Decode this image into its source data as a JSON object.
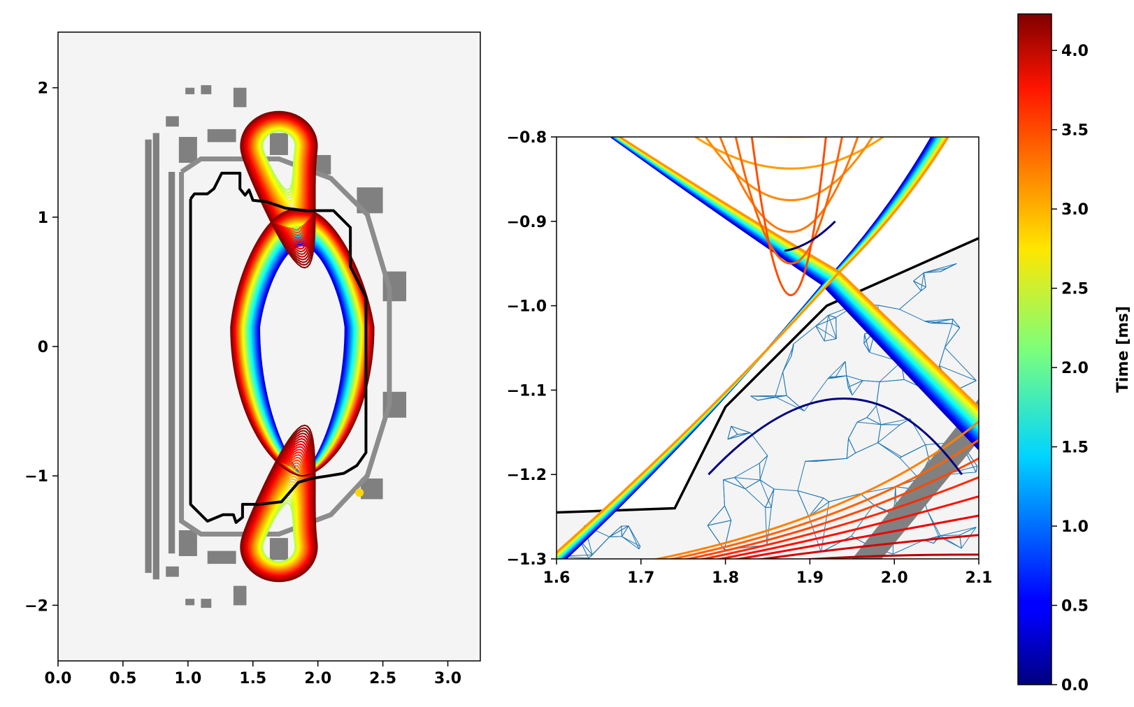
{
  "chart_data": [
    {
      "type": "line",
      "panel": "left",
      "description_visible": "full cross-section with evolving flux contours",
      "xlim": [
        0,
        3.25
      ],
      "ylim": [
        -2.43,
        2.43
      ],
      "xticks": [
        0.0,
        0.5,
        1.0,
        1.5,
        2.0,
        2.5,
        3.0
      ],
      "xtick_labels": [
        "0.0",
        "0.5",
        "1.0",
        "1.5",
        "2.0",
        "2.5",
        "3.0"
      ],
      "yticks": [
        -2,
        -1,
        0,
        1,
        2
      ],
      "ytick_labels": [
        "−2",
        "−1",
        "0",
        "1",
        "2"
      ],
      "background": "#f4f4f4",
      "wall_outline": [
        [
          1.02,
          1.14
        ],
        [
          1.05,
          1.18
        ],
        [
          1.15,
          1.18
        ],
        [
          1.2,
          1.22
        ],
        [
          1.26,
          1.34
        ],
        [
          1.4,
          1.34
        ],
        [
          1.4,
          1.22
        ],
        [
          1.44,
          1.17
        ],
        [
          1.47,
          1.21
        ],
        [
          1.5,
          1.13
        ],
        [
          1.6,
          1.12
        ],
        [
          1.75,
          1.07
        ],
        [
          1.9,
          1.05
        ],
        [
          2.12,
          1.05
        ],
        [
          2.25,
          0.92
        ],
        [
          2.25,
          0.62
        ],
        [
          2.37,
          0.38
        ],
        [
          2.37,
          -0.82
        ],
        [
          2.3,
          -0.92
        ],
        [
          2.2,
          -0.98
        ],
        [
          2.08,
          -1.0
        ],
        [
          1.95,
          -1.02
        ],
        [
          1.85,
          -1.05
        ],
        [
          1.72,
          -1.2
        ],
        [
          1.55,
          -1.22
        ],
        [
          1.42,
          -1.22
        ],
        [
          1.42,
          -1.32
        ],
        [
          1.37,
          -1.36
        ],
        [
          1.35,
          -1.3
        ],
        [
          1.27,
          -1.3
        ],
        [
          1.15,
          -1.35
        ],
        [
          1.02,
          -1.22
        ],
        [
          1.02,
          1.14
        ]
      ],
      "vessel_outline": [
        [
          0.95,
          1.35
        ],
        [
          1.1,
          1.45
        ],
        [
          1.7,
          1.45
        ],
        [
          2.1,
          1.3
        ],
        [
          2.38,
          1.02
        ],
        [
          2.55,
          0.45
        ],
        [
          2.55,
          -0.45
        ],
        [
          2.38,
          -1.0
        ],
        [
          2.1,
          -1.3
        ],
        [
          1.7,
          -1.45
        ],
        [
          1.1,
          -1.45
        ],
        [
          0.95,
          -1.35
        ],
        [
          0.95,
          1.35
        ]
      ],
      "coils": [
        [
          0.67,
          0.72,
          -1.75,
          1.6
        ],
        [
          0.73,
          0.78,
          -1.8,
          1.65
        ],
        [
          0.85,
          0.9,
          -1.6,
          1.35
        ],
        [
          0.93,
          1.07,
          1.42,
          1.62
        ],
        [
          0.93,
          1.07,
          -1.62,
          -1.42
        ],
        [
          1.15,
          1.37,
          1.58,
          1.68
        ],
        [
          1.15,
          1.37,
          -1.68,
          -1.58
        ],
        [
          1.63,
          1.77,
          -1.65,
          -1.48
        ],
        [
          1.63,
          1.77,
          1.48,
          1.65
        ],
        [
          1.9,
          2.1,
          1.33,
          1.48
        ],
        [
          2.3,
          2.5,
          1.03,
          1.23
        ],
        [
          2.5,
          2.68,
          0.35,
          0.58
        ],
        [
          2.5,
          2.68,
          -0.55,
          -0.35
        ],
        [
          2.33,
          2.5,
          -1.18,
          -1.02
        ],
        [
          1.35,
          1.45,
          1.85,
          2.0
        ],
        [
          1.35,
          1.45,
          -2.0,
          -1.85
        ],
        [
          0.83,
          0.93,
          1.7,
          1.78
        ],
        [
          0.83,
          0.93,
          -1.78,
          -1.7
        ],
        [
          1.1,
          1.18,
          1.95,
          2.02
        ],
        [
          1.1,
          1.18,
          -2.02,
          -1.95
        ],
        [
          0.98,
          1.05,
          1.95,
          2.0
        ],
        [
          0.98,
          1.05,
          -2.0,
          -1.95
        ]
      ],
      "marker": [
        2.32,
        -1.13
      ]
    },
    {
      "type": "line",
      "panel": "right",
      "description_visible": "zoom near lower X-point with triangular mesh",
      "xlim": [
        1.6,
        2.1
      ],
      "ylim": [
        -1.3,
        -0.8
      ],
      "xticks": [
        1.6,
        1.7,
        1.8,
        1.9,
        2.0,
        2.1
      ],
      "xtick_labels": [
        "1.6",
        "1.7",
        "1.8",
        "1.9",
        "2.0",
        "2.1"
      ],
      "yticks": [
        -0.8,
        -0.9,
        -1.0,
        -1.1,
        -1.2,
        -1.3
      ],
      "ytick_labels": [
        "−0.8",
        "−0.9",
        "−1.0",
        "−1.1",
        "−1.2",
        "−1.3"
      ],
      "wall_line": [
        [
          1.6,
          -1.245
        ],
        [
          1.74,
          -1.24
        ],
        [
          1.8,
          -1.12
        ],
        [
          1.85,
          -1.07
        ],
        [
          1.92,
          -1.0
        ],
        [
          2.1,
          -0.92
        ]
      ],
      "xpoint_start": [
        1.915,
        -0.975
      ],
      "xpoint_end": [
        1.935,
        -0.96
      ]
    }
  ],
  "colorbar": {
    "label": "Time [ms]",
    "range": [
      0.0,
      4.23
    ],
    "ticks": [
      0.0,
      0.5,
      1.0,
      1.5,
      2.0,
      2.5,
      3.0,
      3.5,
      4.0
    ],
    "tick_labels": [
      "0.0",
      "0.5",
      "1.0",
      "1.5",
      "2.0",
      "2.5",
      "3.0",
      "3.5",
      "4.0"
    ],
    "colormap": "jet"
  },
  "colors": {
    "coil": "#808080",
    "vessel": "#8c8c8c",
    "wall": "#000000",
    "mesh": "#1f77b4",
    "marker": "#ffd700",
    "panel_bg": "#f4f4f4"
  }
}
